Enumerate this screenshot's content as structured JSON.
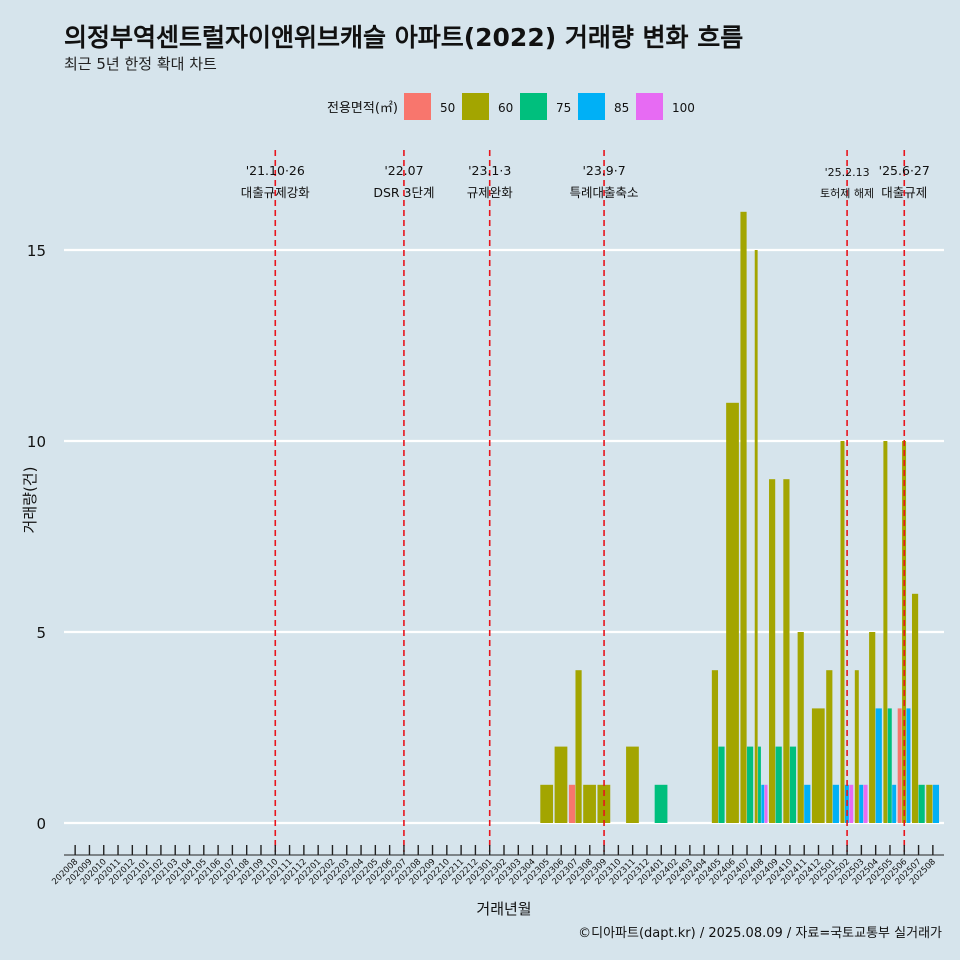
{
  "title": "의정부역센트럴자이앤위브캐슬 아파트(2022) 거래량 변화 흐름",
  "subtitle": "최근 5년 한정 확대 차트",
  "caption": "©디아파트(dapt.kr) / 2025.08.09 / 자료=국토교통부 실거래가",
  "chart_data": {
    "type": "bar",
    "xlabel": "거래년월",
    "ylabel": "거래량(건)",
    "ylim": [
      0,
      17.5
    ],
    "yticks": [
      0,
      5,
      10,
      15
    ],
    "grid": true,
    "legend": {
      "title": "전용면적(㎡)",
      "position": "top",
      "entries": [
        {
          "name": "50",
          "color": "#f8766d"
        },
        {
          "name": "60",
          "color": "#a3a500"
        },
        {
          "name": "75",
          "color": "#00bf7d"
        },
        {
          "name": "85",
          "color": "#00b0f6"
        },
        {
          "name": "100",
          "color": "#e76bf3"
        }
      ]
    },
    "categories": [
      "202008",
      "202009",
      "202010",
      "202011",
      "202012",
      "202101",
      "202102",
      "202103",
      "202104",
      "202105",
      "202106",
      "202107",
      "202108",
      "202109",
      "202110",
      "202111",
      "202112",
      "202201",
      "202202",
      "202203",
      "202204",
      "202205",
      "202206",
      "202207",
      "202208",
      "202209",
      "202210",
      "202211",
      "202212",
      "202301",
      "202302",
      "202303",
      "202304",
      "202305",
      "202306",
      "202307",
      "202308",
      "202309",
      "202310",
      "202311",
      "202312",
      "202401",
      "202402",
      "202403",
      "202404",
      "202405",
      "202406",
      "202407",
      "202408",
      "202409",
      "202410",
      "202411",
      "202412",
      "202501",
      "202502",
      "202503",
      "202504",
      "202505",
      "202506",
      "202507",
      "202508"
    ],
    "bars": [
      {
        "month": "202305",
        "size": "60",
        "value": 1
      },
      {
        "month": "202306",
        "size": "60",
        "value": 2
      },
      {
        "month": "202307",
        "size": "50",
        "value": 1
      },
      {
        "month": "202307",
        "size": "60",
        "value": 4
      },
      {
        "month": "202308",
        "size": "60",
        "value": 1
      },
      {
        "month": "202309",
        "size": "60",
        "value": 1
      },
      {
        "month": "202311",
        "size": "60",
        "value": 2
      },
      {
        "month": "202401",
        "size": "75",
        "value": 1
      },
      {
        "month": "202405",
        "size": "60",
        "value": 4
      },
      {
        "month": "202405",
        "size": "75",
        "value": 2
      },
      {
        "month": "202406",
        "size": "60",
        "value": 11
      },
      {
        "month": "202407",
        "size": "60",
        "value": 16
      },
      {
        "month": "202407",
        "size": "75",
        "value": 2
      },
      {
        "month": "202408",
        "size": "60",
        "value": 15
      },
      {
        "month": "202408",
        "size": "75",
        "value": 2
      },
      {
        "month": "202408",
        "size": "85",
        "value": 1
      },
      {
        "month": "202408",
        "size": "100",
        "value": 1
      },
      {
        "month": "202409",
        "size": "60",
        "value": 9
      },
      {
        "month": "202409",
        "size": "75",
        "value": 2
      },
      {
        "month": "202410",
        "size": "60",
        "value": 9
      },
      {
        "month": "202410",
        "size": "75",
        "value": 2
      },
      {
        "month": "202411",
        "size": "60",
        "value": 5
      },
      {
        "month": "202411",
        "size": "85",
        "value": 1
      },
      {
        "month": "202412",
        "size": "60",
        "value": 3
      },
      {
        "month": "202501",
        "size": "60",
        "value": 4
      },
      {
        "month": "202501",
        "size": "85",
        "value": 1
      },
      {
        "month": "202502",
        "size": "60",
        "value": 10
      },
      {
        "month": "202502",
        "size": "85",
        "value": 1
      },
      {
        "month": "202502",
        "size": "100",
        "value": 1
      },
      {
        "month": "202503",
        "size": "60",
        "value": 4
      },
      {
        "month": "202503",
        "size": "85",
        "value": 1
      },
      {
        "month": "202503",
        "size": "100",
        "value": 1
      },
      {
        "month": "202504",
        "size": "60",
        "value": 5
      },
      {
        "month": "202504",
        "size": "85",
        "value": 3
      },
      {
        "month": "202505",
        "size": "60",
        "value": 10
      },
      {
        "month": "202505",
        "size": "75",
        "value": 3
      },
      {
        "month": "202505",
        "size": "85",
        "value": 1
      },
      {
        "month": "202506",
        "size": "50",
        "value": 3
      },
      {
        "month": "202506",
        "size": "60",
        "value": 10
      },
      {
        "month": "202506",
        "size": "85",
        "value": 3
      },
      {
        "month": "202507",
        "size": "60",
        "value": 6
      },
      {
        "month": "202507",
        "size": "75",
        "value": 1
      },
      {
        "month": "202508",
        "size": "60",
        "value": 1
      },
      {
        "month": "202508",
        "size": "85",
        "value": 1
      }
    ],
    "annotations": [
      {
        "x": "202110",
        "date": "'21.10·26",
        "label": "대출규제강화"
      },
      {
        "x": "202207",
        "date": "'22.07",
        "label": "DSR 3단계"
      },
      {
        "x": "202301",
        "date": "'23.1·3",
        "label": "규제완화"
      },
      {
        "x": "202309",
        "date": "'23.9·7",
        "label": "특례대출축소"
      },
      {
        "x": "202502",
        "date": "'25.2.13",
        "label": "토허제 해제"
      },
      {
        "x": "202506",
        "date": "'25.6·27",
        "label": "대출규제"
      }
    ]
  }
}
